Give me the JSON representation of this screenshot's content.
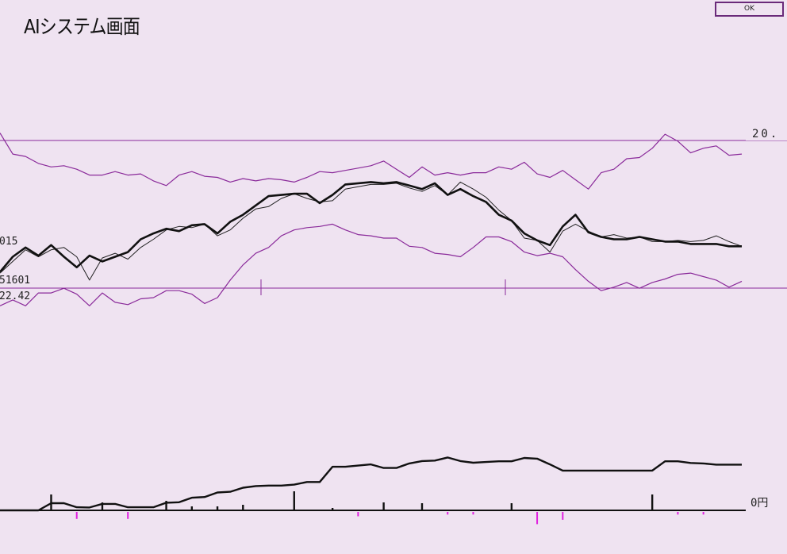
{
  "window": {
    "title": "AIシステム画面",
    "ok_label": "OK"
  },
  "colors": {
    "background": "#efe3f1",
    "band": "#8a2a9a",
    "price": "#111111",
    "compare": "#222222",
    "profit": "#111111",
    "buy_signal": "#111111",
    "sell_signal": "#e020e0"
  },
  "chart_data": [
    {
      "type": "line",
      "title": "",
      "labels": {
        "upper_right": "20.",
        "left_1": "015",
        "left_2": "51601",
        "left_3": "22.42"
      },
      "x": [
        0,
        1,
        2,
        3,
        4,
        5,
        6,
        7,
        8,
        9,
        10,
        11,
        12,
        13,
        14,
        15,
        16,
        17,
        18,
        19,
        20,
        21,
        22,
        23,
        24,
        25,
        26,
        27,
        28,
        29,
        30,
        31,
        32,
        33,
        34,
        35,
        36,
        37,
        38,
        39,
        40,
        41,
        42,
        43,
        44,
        45,
        46,
        47,
        48,
        49,
        50,
        51,
        52,
        53,
        54,
        55,
        56,
        57,
        58
      ],
      "series": [
        {
          "role": "upper-band",
          "values": [
            368,
            350,
            348,
            342,
            339,
            340,
            337,
            332,
            332,
            335,
            332,
            333,
            327,
            323,
            332,
            335,
            331,
            330,
            326,
            329,
            327,
            329,
            328,
            326,
            330,
            335,
            334,
            336,
            338,
            340,
            344,
            337,
            330,
            339,
            332,
            334,
            332,
            334,
            334,
            339,
            337,
            343,
            333,
            330,
            336,
            328,
            320,
            334,
            337,
            346,
            347,
            355,
            367,
            361,
            351,
            355,
            357,
            349,
            350
          ]
        },
        {
          "role": "price",
          "values": [
            249,
            262,
            270,
            263,
            272,
            262,
            253,
            263,
            258,
            262,
            266,
            277,
            282,
            286,
            284,
            289,
            290,
            282,
            292,
            298,
            306,
            314,
            315,
            316,
            316,
            308,
            315,
            324,
            325,
            326,
            325,
            326,
            323,
            320,
            325,
            315,
            320,
            314,
            309,
            298,
            293,
            282,
            276,
            272,
            288,
            298,
            283,
            279,
            277,
            277,
            279,
            277,
            275,
            275,
            273,
            273,
            273,
            271,
            271
          ]
        },
        {
          "role": "compare",
          "values": [
            248,
            258,
            268,
            262,
            268,
            270,
            262,
            242,
            261,
            265,
            260,
            270,
            277,
            285,
            288,
            287,
            290,
            280,
            285,
            295,
            303,
            305,
            312,
            316,
            312,
            309,
            310,
            320,
            322,
            324,
            324,
            325,
            321,
            318,
            323,
            315,
            326,
            320,
            313,
            302,
            293,
            278,
            276,
            266,
            284,
            290,
            284,
            279,
            281,
            278,
            279,
            275,
            275,
            276,
            275,
            276,
            280,
            275,
            271
          ]
        },
        {
          "role": "lower-band",
          "values": [
            220,
            225,
            220,
            231,
            231,
            235,
            230,
            220,
            231,
            223,
            221,
            226,
            227,
            233,
            233,
            230,
            222,
            227,
            242,
            255,
            265,
            270,
            280,
            285,
            287,
            288,
            290,
            285,
            281,
            280,
            278,
            278,
            271,
            270,
            265,
            264,
            262,
            270,
            279,
            279,
            275,
            266,
            263,
            265,
            262,
            251,
            241,
            233,
            236,
            240,
            235,
            240,
            243,
            247,
            248,
            245,
            242,
            236,
            241
          ]
        }
      ],
      "xlim": [
        0,
        58
      ],
      "ylim": [
        210,
        380
      ]
    },
    {
      "type": "line",
      "title": "",
      "labels": {
        "zero": "0円"
      },
      "x": [
        0,
        1,
        2,
        3,
        4,
        5,
        6,
        7,
        8,
        9,
        10,
        11,
        12,
        13,
        14,
        15,
        16,
        17,
        18,
        19,
        20,
        21,
        22,
        23,
        24,
        25,
        26,
        27,
        28,
        29,
        30,
        31,
        32,
        33,
        34,
        35,
        36,
        37,
        38,
        39,
        40,
        41,
        42,
        43,
        44,
        45,
        46,
        47,
        48,
        49,
        50,
        51,
        52,
        53,
        54,
        55,
        56,
        57,
        58
      ],
      "series": [
        {
          "role": "cumulative-profit",
          "values": [
            0,
            0,
            0,
            0,
            0.3,
            0.3,
            0.13,
            0.12,
            0.27,
            0.27,
            0.13,
            0.13,
            0.13,
            0.32,
            0.34,
            0.53,
            0.56,
            0.75,
            0.78,
            0.95,
            1.02,
            1.04,
            1.04,
            1.08,
            1.19,
            1.19,
            1.83,
            1.83,
            1.88,
            1.93,
            1.78,
            1.78,
            1.97,
            2.07,
            2.09,
            2.22,
            2.07,
            2.0,
            2.03,
            2.06,
            2.06,
            2.2,
            2.17,
            1.93,
            1.67,
            1.67,
            1.67,
            1.67,
            1.67,
            1.67,
            1.67,
            1.67,
            2.06,
            2.06,
            1.99,
            1.97,
            1.92,
            1.92,
            1.92
          ]
        }
      ],
      "signals": {
        "buy": [
          {
            "x": 4,
            "h": 1
          },
          {
            "x": 8,
            "h": 0.5
          },
          {
            "x": 13,
            "h": 0.6
          },
          {
            "x": 15,
            "h": 0.25
          },
          {
            "x": 17,
            "h": 0.25
          },
          {
            "x": 19,
            "h": 0.35
          },
          {
            "x": 23,
            "h": 1.2
          },
          {
            "x": 26,
            "h": 0.15
          },
          {
            "x": 30,
            "h": 0.5
          },
          {
            "x": 33,
            "h": 0.45
          },
          {
            "x": 40,
            "h": 0.45
          },
          {
            "x": 51,
            "h": 1.0
          }
        ],
        "sell": [
          {
            "x": 6,
            "h": 0.4
          },
          {
            "x": 10,
            "h": 0.4
          },
          {
            "x": 28,
            "h": 0.25
          },
          {
            "x": 35,
            "h": 0.15
          },
          {
            "x": 37,
            "h": 0.15
          },
          {
            "x": 42,
            "h": 0.7
          },
          {
            "x": 44,
            "h": 0.45
          },
          {
            "x": 53,
            "h": 0.15
          },
          {
            "x": 55,
            "h": 0.15
          }
        ]
      },
      "ylim": [
        -1,
        2.6
      ]
    }
  ]
}
